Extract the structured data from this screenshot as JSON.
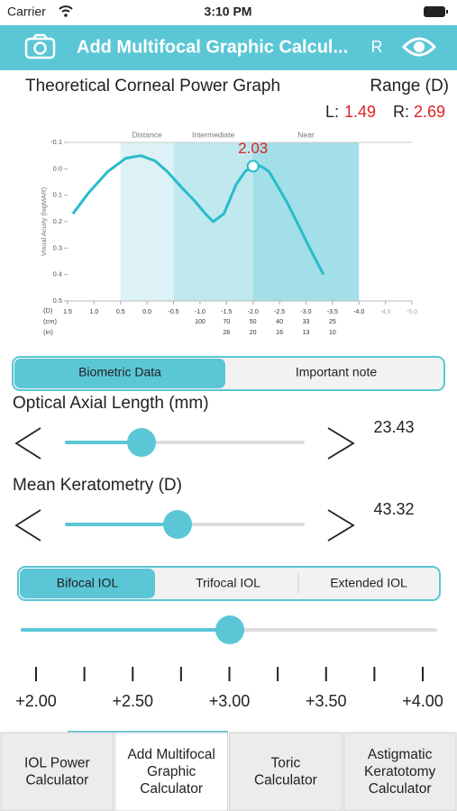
{
  "status_bar": {
    "carrier": "Carrier",
    "time": "3:10 PM"
  },
  "nav_bar": {
    "title": "Add Multifocal Graphic Calcul...",
    "right_label": "R"
  },
  "header": {
    "title": "Theoretical Corneal Power Graph",
    "range_label": "Range (D)",
    "left_label": "L:",
    "left_value": "1.49",
    "right_label": "R:",
    "right_value": "2.69"
  },
  "graph": {
    "type": "line",
    "y_label": "Visual Acuity (logMAR)",
    "xlim": [
      1.5,
      -5.0
    ],
    "ylim": [
      -0.1,
      0.5
    ],
    "xticks": [
      1.5,
      {
        "value": 1.0,
        "label": "1.0"
      },
      0.5,
      {
        "value": 0.0,
        "label": "0.0"
      },
      -0.5,
      {
        "value": -1.0,
        "label": "-1.0"
      },
      -1.5,
      {
        "value": -2.0,
        "label": "-2.0"
      },
      -2.5,
      {
        "value": -3.0,
        "label": "-3.0"
      },
      -3.5,
      {
        "value": -4.0,
        "label": "-4.0"
      },
      {
        "value": -4.5,
        "label": "-4,5"
      },
      {
        "value": -5.0,
        "label": "-5,0"
      }
    ],
    "yticks": [
      -0.1,
      {
        "value": 0.0,
        "label": "0.0"
      },
      0.1,
      0.2,
      0.3,
      0.4,
      0.5
    ],
    "row_labels": [
      "(D)",
      "(cm)",
      "(in)"
    ],
    "cm": [
      null,
      null,
      null,
      null,
      null,
      100,
      70,
      50,
      40,
      33,
      25,
      null,
      null,
      null
    ],
    "in": [
      null,
      null,
      null,
      null,
      null,
      null,
      28,
      20,
      16,
      13,
      10,
      null,
      null,
      null
    ],
    "regions": [
      {
        "label": "Distance",
        "from": 0.5,
        "to": -0.5,
        "color": "#dcf2f6"
      },
      {
        "label": "Intermediate",
        "from": -0.5,
        "to": -2.0,
        "color": "#bfe8ef"
      },
      {
        "label": "Near",
        "from": -2.0,
        "to": -4.0,
        "color": "#a2dfe8"
      }
    ],
    "curve": {
      "color": "#27bccb",
      "x": [
        1.4,
        1.1,
        0.74,
        0.4,
        0.12,
        -0.15,
        -0.38,
        -0.65,
        -0.89,
        -1.1,
        -1.25,
        -1.45,
        -1.68,
        -1.85,
        -2.0,
        -2.15,
        -2.3,
        -2.45,
        -2.65,
        -2.85,
        -3.07,
        -3.33
      ],
      "y": [
        0.17,
        0.09,
        0.01,
        -0.04,
        -0.05,
        -0.03,
        0.01,
        0.07,
        0.12,
        0.17,
        0.2,
        0.17,
        0.06,
        0.01,
        -0.01,
        -0.01,
        0.01,
        0.06,
        0.13,
        0.21,
        0.3,
        0.4
      ]
    },
    "marker": {
      "x": -2.0,
      "y": -0.01,
      "label": "2.03"
    }
  },
  "tabs_top": {
    "items": [
      "Biometric Data",
      "Important note"
    ]
  },
  "biometrics": [
    {
      "label": "Optical Axial Length (mm)",
      "value": 23.43
    },
    {
      "label": "Mean Keratometry (D)",
      "value": 43.32
    }
  ],
  "iol_types": {
    "items": [
      "Bifocal IOL",
      "Trifocal IOL",
      "Extended IOL"
    ]
  },
  "add_power": {
    "ticks": [
      "+2.00",
      "+2.50",
      "+3.00",
      "+3.50",
      "+4.00"
    ]
  },
  "tab_bar": {
    "items": [
      [
        "IOL Power",
        "Calculator"
      ],
      [
        "Add Multifocal",
        "Graphic",
        "Calculator"
      ],
      [
        "Toric",
        "Calculator"
      ],
      [
        "Astigmatic",
        "Keratotomy",
        "Calculator"
      ]
    ]
  }
}
